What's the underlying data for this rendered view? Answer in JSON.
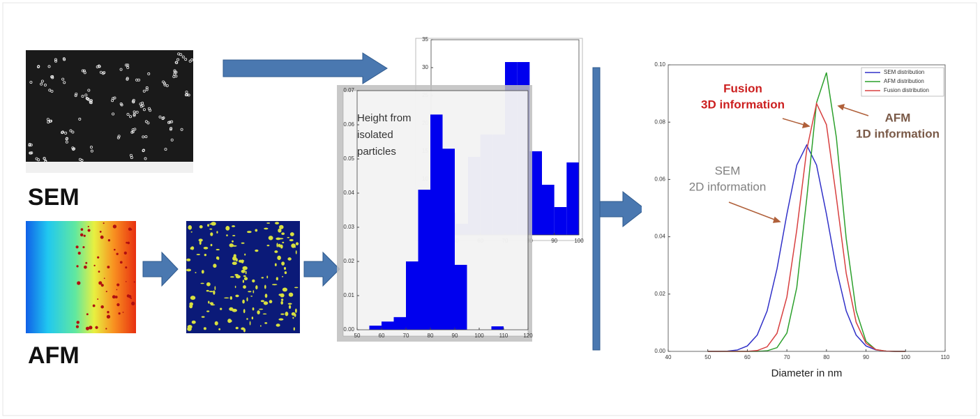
{
  "labels": {
    "sem": "SEM",
    "afm": "AFM",
    "height_note": [
      "Height from",
      "isolated",
      "particles"
    ]
  },
  "chart_data": [
    {
      "type": "histogram",
      "color": "#0000ee",
      "bins": [
        45,
        50,
        55,
        60,
        65,
        70,
        75,
        80,
        85,
        90,
        95,
        100
      ],
      "values": [
        4,
        2,
        14,
        18,
        18,
        31,
        31,
        15,
        9,
        5,
        13
      ],
      "xlim": [
        40,
        100
      ],
      "ylim": [
        0,
        35
      ],
      "xticks": [
        40,
        50,
        60,
        70,
        80,
        90,
        100
      ],
      "yticks": [
        0,
        5,
        10,
        15,
        20,
        25,
        30,
        35
      ]
    },
    {
      "type": "histogram",
      "color": "#0000ee",
      "bins": [
        55,
        60,
        65,
        70,
        75,
        80,
        85,
        90,
        95,
        100,
        105,
        110
      ],
      "values": [
        0.0012,
        0.0024,
        0.0037,
        0.02,
        0.041,
        0.063,
        0.053,
        0.019,
        0,
        0,
        0.001
      ],
      "xlim": [
        50,
        120
      ],
      "ylim": [
        0,
        0.07
      ],
      "xticks": [
        50,
        60,
        70,
        80,
        90,
        100,
        110,
        120
      ],
      "yticks": [
        {
          "value": 0,
          "label": "0.00"
        },
        {
          "value": 0.01,
          "label": "0.01"
        },
        {
          "value": 0.02,
          "label": "0.02"
        },
        {
          "value": 0.03,
          "label": "0.03"
        },
        {
          "value": 0.04,
          "label": "0.04"
        },
        {
          "value": 0.05,
          "label": "0.05"
        },
        {
          "value": 0.06,
          "label": "0.06"
        },
        {
          "value": 0.07,
          "label": "0.07"
        }
      ]
    },
    {
      "type": "line",
      "xlabel": "Diameter in nm",
      "x": [
        50,
        52.5,
        55,
        57.5,
        60,
        62.5,
        65,
        67.5,
        70,
        72.5,
        75,
        77.5,
        80,
        82.5,
        85,
        87.5,
        90,
        92.5,
        95,
        97.5,
        100
      ],
      "series": [
        {
          "name": "SEM distribution",
          "color": "#3030c8",
          "values": [
            0,
            0,
            0.0001,
            0.0005,
            0.0019,
            0.0057,
            0.0141,
            0.0288,
            0.0479,
            0.065,
            0.072,
            0.065,
            0.0479,
            0.0288,
            0.0141,
            0.0057,
            0.0019,
            0.0005,
            0.0001,
            0,
            0
          ]
        },
        {
          "name": "AFM distribution",
          "color": "#2ca02c",
          "values": [
            0,
            0,
            0,
            0,
            0,
            0,
            0.0002,
            0.0013,
            0.0064,
            0.0223,
            0.0531,
            0.0868,
            0.0973,
            0.0747,
            0.0393,
            0.0142,
            0.0035,
            0.0006,
            0.0001,
            0,
            0
          ]
        },
        {
          "name": "Fusion distribution",
          "color": "#d84040",
          "values": [
            0,
            0,
            0,
            0,
            0,
            0.0003,
            0.0016,
            0.0063,
            0.019,
            0.0424,
            0.0702,
            0.0865,
            0.0791,
            0.0538,
            0.0272,
            0.0102,
            0.0028,
            0.0006,
            0.0001,
            0,
            0
          ]
        }
      ],
      "xlim": [
        40,
        110
      ],
      "ylim": [
        0,
        0.1
      ],
      "xticks": [
        40,
        50,
        60,
        70,
        80,
        90,
        100,
        110
      ],
      "yticks": [
        {
          "value": 0,
          "label": "0.00"
        },
        {
          "value": 0.02,
          "label": "0.02"
        },
        {
          "value": 0.04,
          "label": "0.04"
        },
        {
          "value": 0.06,
          "label": "0.06"
        },
        {
          "value": 0.08,
          "label": "0.08"
        },
        {
          "value": 0.1,
          "label": "0.10"
        }
      ],
      "annotations": [
        {
          "lines": [
            "Fusion",
            "3D information"
          ],
          "color": "#cc1f1f"
        },
        {
          "lines": [
            "AFM",
            "1D information"
          ],
          "color": "#7a5a48"
        },
        {
          "lines": [
            "SEM",
            "2D information"
          ],
          "color": "#808080"
        }
      ]
    }
  ]
}
